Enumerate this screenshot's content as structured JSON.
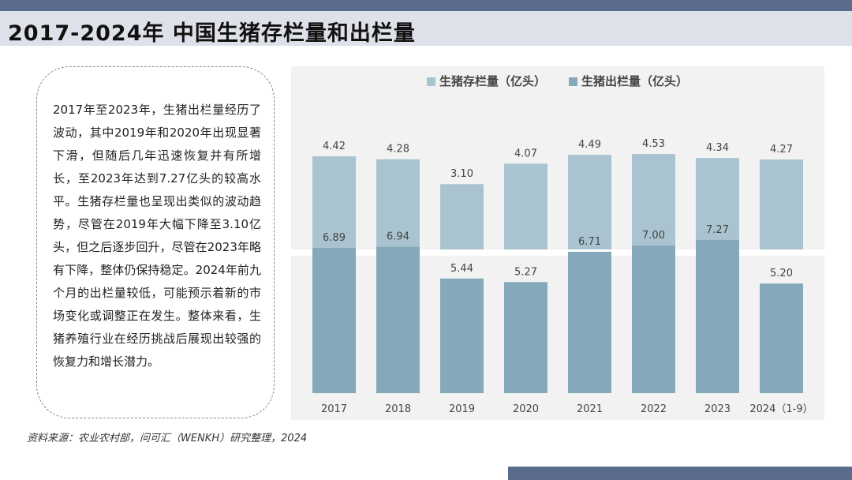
{
  "colors": {
    "bar_top_header": "#5a6b8c",
    "bar_bottom_footer": "#5a6b8c",
    "stock_bar": "#a9c4d0",
    "slaughter_bar": "#85a9bb"
  },
  "header": {
    "title": "2017-2024年 中国生猪存栏量和出栏量"
  },
  "summary": {
    "text": "2017年至2023年，生猪出栏量经历了波动，其中2019年和2020年出现显著下滑，但随后几年迅速恢复并有所增长，至2023年达到7.27亿头的较高水平。生猪存栏量也呈现出类似的波动趋势，尽管在2019年大幅下降至3.10亿头，但之后逐步回升，尽管在2023年略有下降，整体仍保持稳定。2024年前九个月的出栏量较低，可能预示着新的市场变化或调整正在发生。整体来看，生猪养殖行业在经历挑战后展现出较强的恢复力和增长潜力。"
  },
  "chart_data": {
    "type": "bar",
    "categories": [
      "2017",
      "2018",
      "2019",
      "2020",
      "2021",
      "2022",
      "2023",
      "2024（1-9）"
    ],
    "series": [
      {
        "name": "生猪存栏量（亿头）",
        "values": [
          4.42,
          4.28,
          3.1,
          4.07,
          4.49,
          4.53,
          4.34,
          4.27
        ],
        "labels": [
          "4.42",
          "4.28",
          "3.10",
          "4.07",
          "4.49",
          "4.53",
          "4.34",
          "4.27"
        ]
      },
      {
        "name": "生猪出栏量（亿头）",
        "values": [
          6.89,
          6.94,
          5.44,
          5.27,
          6.71,
          7.0,
          7.27,
          5.2
        ],
        "labels": [
          "6.89",
          "6.94",
          "5.44",
          "5.27",
          "6.71",
          "7.00",
          "7.27",
          "5.20"
        ]
      }
    ],
    "ylim": [
      0,
      8.5
    ],
    "legend": "top-center",
    "grid": false
  },
  "footer": {
    "source": "资料来源：农业农村部，问可汇（WENKH）研究整理，2024"
  }
}
